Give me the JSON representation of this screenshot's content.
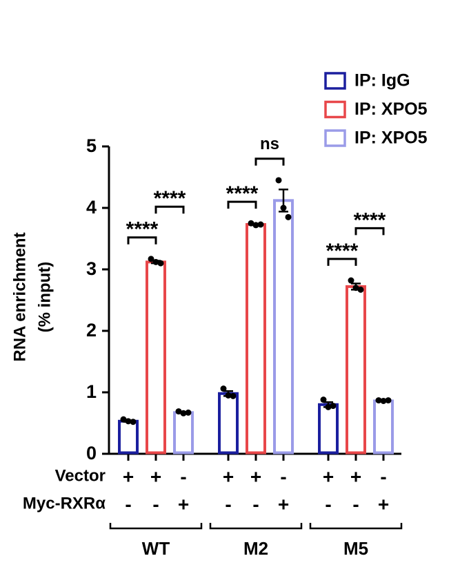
{
  "chart_data": {
    "type": "bar",
    "y_label": [
      "RNA enrichment",
      "(% input)"
    ],
    "categories": [
      "WT",
      "M2",
      "M5"
    ],
    "series": [
      {
        "name": "IP: IgG",
        "color": "#1b1f9e",
        "values": [
          0.53,
          0.98,
          0.8
        ],
        "errors": [
          0.01,
          0.04,
          0.04
        ],
        "points": [
          [
            0.56,
            0.53,
            0.52
          ],
          [
            1.06,
            0.95,
            0.94
          ],
          [
            0.88,
            0.76,
            0.78
          ]
        ]
      },
      {
        "name": "IP: XPO5",
        "color": "#e8474a",
        "values": [
          3.12,
          3.73,
          2.72
        ],
        "errors": [
          0.02,
          0.01,
          0.05
        ],
        "points": [
          [
            3.17,
            3.12,
            3.1
          ],
          [
            3.75,
            3.72,
            3.73
          ],
          [
            2.82,
            2.7,
            2.67
          ]
        ]
      },
      {
        "name": "IP: XPO5",
        "color": "#9a9be8",
        "values": [
          0.67,
          4.12,
          0.86
        ],
        "errors": [
          0.01,
          0.18,
          0.01
        ],
        "points": [
          [
            0.69,
            0.66,
            0.67
          ],
          [
            4.45,
            4.0,
            3.85
          ],
          [
            0.87,
            0.86,
            0.87
          ]
        ]
      }
    ],
    "ylim": [
      0,
      5
    ],
    "yticks": [
      0,
      1,
      2,
      3,
      4,
      5
    ],
    "annotations": [
      {
        "text": "****",
        "category": 0,
        "series": [
          0,
          1
        ]
      },
      {
        "text": "****",
        "category": 0,
        "series": [
          1,
          2
        ]
      },
      {
        "text": "****",
        "category": 1,
        "series": [
          0,
          1
        ]
      },
      {
        "text": "ns",
        "category": 1,
        "series": [
          1,
          2
        ]
      },
      {
        "text": "****",
        "category": 2,
        "series": [
          0,
          1
        ]
      },
      {
        "text": "****",
        "category": 2,
        "series": [
          1,
          2
        ]
      }
    ],
    "rows": [
      {
        "label": "Vector",
        "marks": [
          "+",
          "+",
          "-"
        ]
      },
      {
        "label": "Myc-RXRα",
        "marks": [
          "-",
          "-",
          "+"
        ]
      }
    ]
  }
}
